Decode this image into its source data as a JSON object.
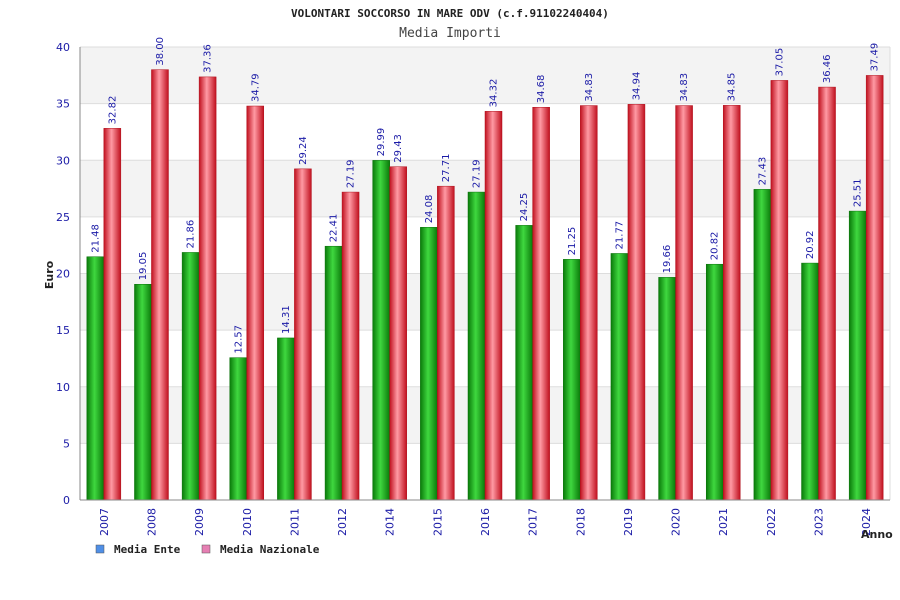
{
  "chart_data": {
    "type": "bar",
    "title": "VOLONTARI SOCCORSO IN MARE ODV (c.f.91102240404)",
    "subtitle": "Media Importi",
    "xlabel": "Anno",
    "ylabel": "Euro",
    "ylim": [
      0,
      40
    ],
    "yticks": [
      0,
      5,
      10,
      15,
      20,
      25,
      30,
      35,
      40
    ],
    "grid": true,
    "legend_position": "bottom-left",
    "categories": [
      "2007",
      "2008",
      "2009",
      "2010",
      "2011",
      "2012",
      "2014",
      "2015",
      "2016",
      "2017",
      "2018",
      "2019",
      "2020",
      "2021",
      "2022",
      "2023",
      "2024"
    ],
    "series": [
      {
        "name": "Media Ente",
        "legend_color": "#4f8fe6",
        "bar_color": "#1fae1f",
        "values": [
          21.48,
          19.05,
          21.86,
          12.57,
          14.31,
          22.41,
          29.99,
          24.08,
          27.19,
          24.25,
          21.25,
          21.77,
          19.66,
          20.82,
          27.43,
          20.92,
          25.51
        ],
        "value_labels": [
          "21.48",
          "19.05",
          "21.86",
          "12.57",
          "14.31",
          "22.41",
          "29.99",
          "24.08",
          "27.19",
          "24.25",
          "21.25",
          "21.77",
          "19.66",
          "20.82",
          "27.43",
          "20.92",
          "25.51"
        ]
      },
      {
        "name": "Media Nazionale",
        "legend_color": "#e67fb3",
        "bar_color": "#e8283c",
        "values": [
          32.82,
          38.0,
          37.36,
          34.79,
          29.24,
          27.19,
          29.43,
          27.71,
          34.32,
          34.68,
          34.83,
          34.94,
          34.83,
          34.85,
          37.05,
          36.46,
          37.49
        ],
        "value_labels": [
          "32.82",
          "38.00",
          "37.36",
          "34.79",
          "29.24",
          "27.19",
          "29.43",
          "27.71",
          "34.32",
          "34.68",
          "34.83",
          "34.94",
          "34.83",
          "34.85",
          "37.05",
          "36.46",
          "37.49"
        ]
      }
    ]
  }
}
